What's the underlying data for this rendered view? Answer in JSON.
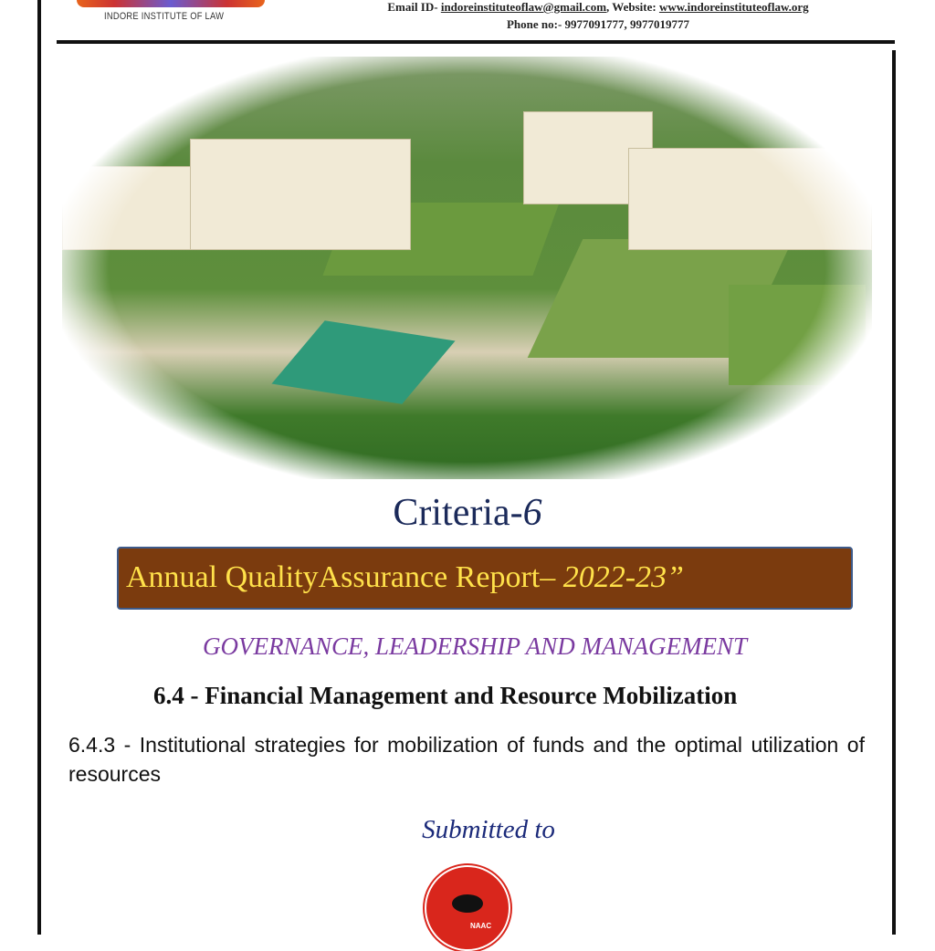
{
  "header": {
    "institute_name": "INDORE INSTITUTE OF LAW",
    "email_label": "Email ID-",
    "email": "indoreinstituteoflaw@gmail.com",
    "website_label": "Website:",
    "website": "www.indoreinstituteoflaw.org",
    "phone": "Phone no:- 9977091777, 9977019777"
  },
  "cover": {
    "criteria_word": "Criteria-",
    "criteria_number": "6",
    "report_title": "Annual QualityAssurance Report– ",
    "report_year": "2022-23”",
    "section_heading": "GOVERNANCE, LEADERSHIP AND MANAGEMENT",
    "subsection": "6.4 - Financial Management and Resource Mobilization",
    "metric": "6.4.3 - Institutional strategies for mobilization of funds and the optimal utilization of resources",
    "submitted_to": "Submitted to",
    "naac_logo_text": "NAAC",
    "accent_color": "#7b3b0e",
    "banner_text_color": "#ffe14a",
    "heading_color": "#7a3aa0"
  }
}
